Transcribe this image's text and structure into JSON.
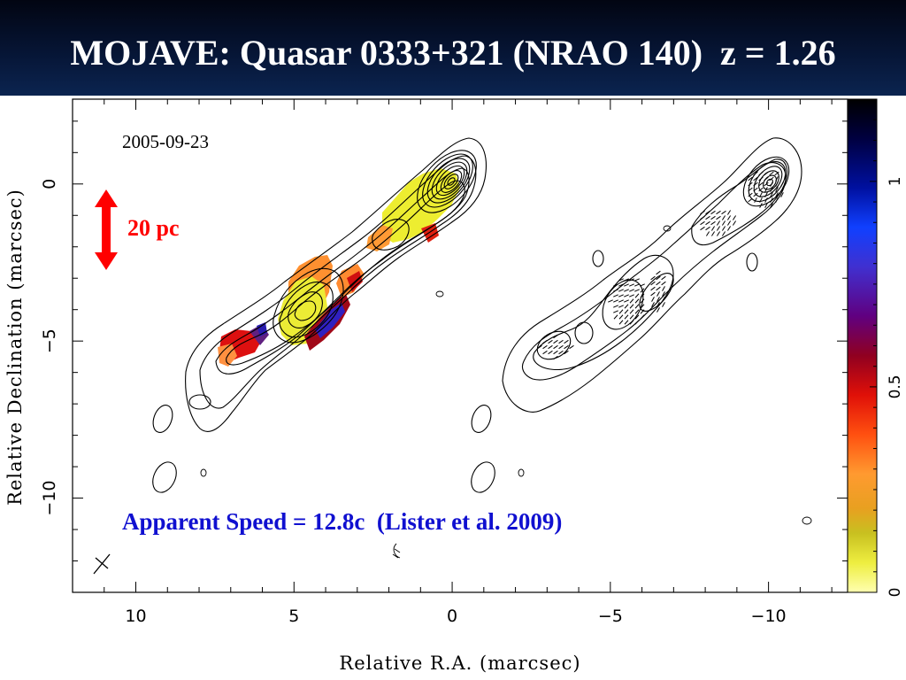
{
  "title": "MOJAVE: Quasar 0333+321 (NRAO 140)  z = 1.26",
  "colors": {
    "title_background": "#061535",
    "title_text": "#ffffff",
    "scale_bar": "#ff0000",
    "speed_text": "#1010d0"
  },
  "chart_data": {
    "type": "heatmap",
    "title": "MOJAVE: Quasar 0333+321 (NRAO 140)  z = 1.26",
    "xlabel": "Relative R.A. (marcsec)",
    "ylabel": "Relative Declination (marcsec)",
    "x_ticks": [
      10,
      5,
      0,
      -5,
      -10
    ],
    "x_tick_labels": [
      "10",
      "5",
      "0",
      "−5",
      "−10"
    ],
    "y_ticks": [
      0,
      -5,
      -10
    ],
    "y_tick_labels": [
      "0",
      "−5",
      "−10"
    ],
    "xlim": [
      12,
      -12.5
    ],
    "ylim": [
      -13,
      2.7
    ],
    "colorbar": {
      "range": [
        0,
        1.2
      ],
      "ticks": [
        0,
        0.5,
        1
      ],
      "tick_labels": [
        "0",
        "0.5",
        "1"
      ]
    },
    "epoch": "2005-09-23",
    "scale_bar_label": "20 pc",
    "speed_annotation": "Apparent Speed = 12.8c  (Lister et al. 2009)",
    "panels": [
      "total intensity contours with fractional polarization colour",
      "total intensity contours with polarization ticks"
    ]
  }
}
